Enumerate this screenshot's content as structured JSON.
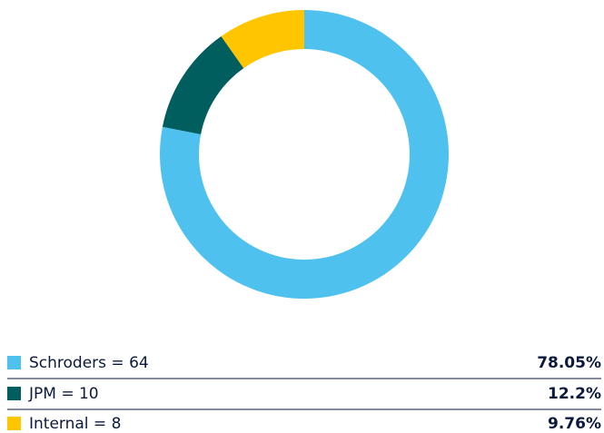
{
  "chart_data": {
    "type": "donut",
    "categories": [
      "Schroders = 64",
      "JPM = 10",
      "Internal = 8"
    ],
    "values": [
      78.05,
      12.2,
      9.76
    ],
    "value_labels": [
      "78.05%",
      "12.2%",
      "9.76%"
    ],
    "colors": [
      "#4fc1ef",
      "#005e5e",
      "#ffc600"
    ]
  }
}
